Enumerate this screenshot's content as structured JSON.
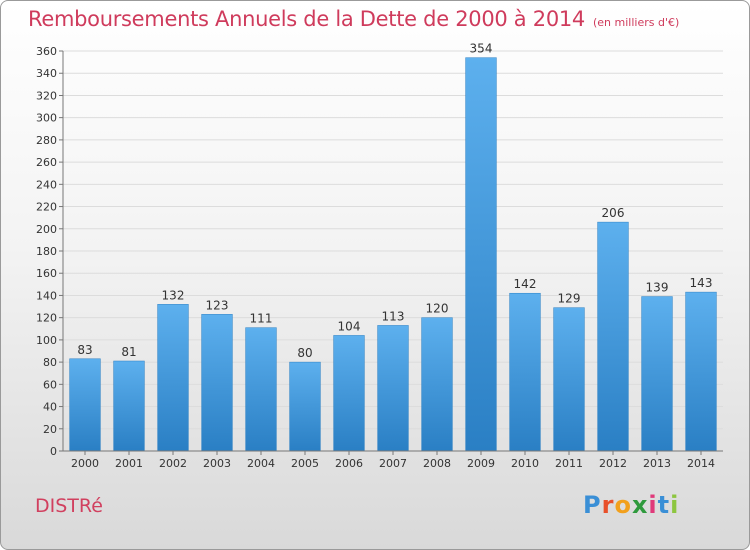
{
  "header": {
    "title": "Remboursements Annuels de la Dette de 2000 à 2014",
    "unit": "(en milliers d'€)"
  },
  "commune": "DISTRé",
  "logo": {
    "letters": [
      "P",
      "r",
      "o",
      "x",
      "i",
      "t",
      "i"
    ],
    "colors": [
      "#3a8fd6",
      "#e8502a",
      "#f2a01c",
      "#2f9a3d",
      "#e03a7a",
      "#3a8fd6",
      "#8dc63f"
    ]
  },
  "chart_data": {
    "type": "bar",
    "title": "Remboursements Annuels de la Dette de 2000 à 2014",
    "xlabel": "",
    "ylabel": "",
    "categories": [
      "2000",
      "2001",
      "2002",
      "2003",
      "2004",
      "2005",
      "2006",
      "2007",
      "2008",
      "2009",
      "2010",
      "2011",
      "2012",
      "2013",
      "2014"
    ],
    "values": [
      83,
      81,
      132,
      123,
      111,
      80,
      104,
      113,
      120,
      354,
      142,
      129,
      206,
      139,
      143
    ],
    "ylim": [
      0,
      360
    ],
    "yticks": [
      0,
      20,
      40,
      60,
      80,
      100,
      120,
      140,
      160,
      180,
      200,
      220,
      240,
      260,
      280,
      300,
      320,
      340,
      360
    ],
    "grid": true,
    "bar_color": "#4aa0e2"
  }
}
